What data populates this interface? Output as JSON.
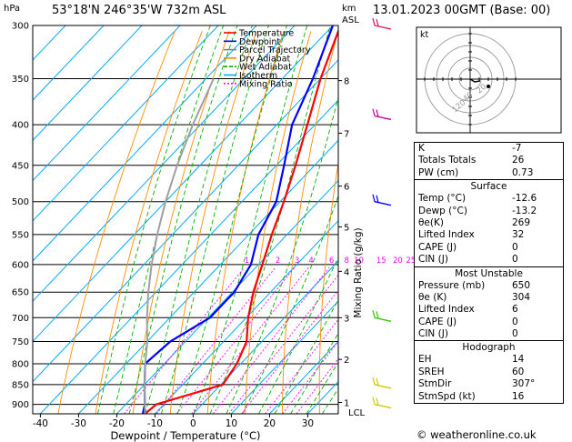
{
  "header": {
    "location": "53°18'N  246°35'W  732m  ASL",
    "datetime": "13.01.2023  00GMT  (Base: 00)",
    "unit_left": "hPa",
    "unit_right_km": "km",
    "unit_right_asl": "ASL"
  },
  "chart_data": {
    "type": "line",
    "title": "",
    "xlabel": "Dewpoint / Temperature (°C)",
    "ylabel_left": "hPa",
    "ylabel_right": "Mixing Ratio (g/kg)",
    "x_ticks": [
      -40,
      -30,
      -20,
      -10,
      0,
      10,
      20,
      30
    ],
    "pressure_levels": [
      300,
      350,
      400,
      450,
      500,
      550,
      600,
      650,
      700,
      750,
      800,
      850,
      900
    ],
    "pressure_range": [
      300,
      925
    ],
    "temp_range_at_base": [
      -42,
      38
    ],
    "km_ticks": [
      {
        "p": 352,
        "label": "8"
      },
      {
        "p": 410,
        "label": "7"
      },
      {
        "p": 478,
        "label": "6"
      },
      {
        "p": 538,
        "label": "5"
      },
      {
        "p": 612,
        "label": "4"
      },
      {
        "p": 700,
        "label": "3"
      },
      {
        "p": 790,
        "label": "2"
      },
      {
        "p": 895,
        "label": "1"
      }
    ],
    "lcl_label": "LCL",
    "lcl_pressure": 920,
    "mixing_ratio_labels": [
      "1",
      "2",
      "3",
      "4",
      "6",
      "8",
      "10",
      "15",
      "20",
      "25"
    ],
    "mixing_ratio_label_pressure": 600,
    "legend": {
      "placement": "top-left inside plot",
      "items": [
        {
          "name": "Temperature",
          "color": "#ff0000"
        },
        {
          "name": "Dewpoint",
          "color": "#0000ff"
        },
        {
          "name": "Parcel Trajectory",
          "color": "#808080"
        },
        {
          "name": "Dry Adiabat",
          "color": "#ff8c00"
        },
        {
          "name": "Wet Adiabat",
          "color": "#00b000"
        },
        {
          "name": "Isotherm",
          "color": "#00aaff"
        },
        {
          "name": "Mixing Ratio",
          "color": "#ff00ff"
        }
      ]
    },
    "series": [
      {
        "name": "Temperature",
        "color": "#ff0000",
        "points": [
          [
            925,
            -12.6
          ],
          [
            900,
            -12
          ],
          [
            850,
            0.5
          ],
          [
            800,
            -1
          ],
          [
            750,
            -4
          ],
          [
            700,
            -9.5
          ],
          [
            650,
            -14.5
          ],
          [
            600,
            -19
          ],
          [
            550,
            -24
          ],
          [
            500,
            -29
          ],
          [
            450,
            -35
          ],
          [
            400,
            -42
          ],
          [
            350,
            -50
          ],
          [
            300,
            -58
          ]
        ]
      },
      {
        "name": "Dewpoint",
        "color": "#0000ff",
        "points": [
          [
            925,
            -13.2
          ],
          [
            900,
            -15
          ],
          [
            850,
            -20
          ],
          [
            800,
            -25
          ],
          [
            750,
            -24
          ],
          [
            700,
            -19.5
          ],
          [
            650,
            -19.5
          ],
          [
            600,
            -22
          ],
          [
            550,
            -27.5
          ],
          [
            500,
            -31
          ],
          [
            450,
            -38
          ],
          [
            400,
            -46
          ],
          [
            350,
            -52
          ],
          [
            300,
            -60
          ]
        ]
      },
      {
        "name": "Parcel Trajectory",
        "color": "#a0a0a0",
        "points": [
          [
            925,
            -12.6
          ],
          [
            900,
            -15
          ],
          [
            850,
            -20
          ],
          [
            800,
            -25
          ],
          [
            750,
            -30
          ],
          [
            700,
            -36
          ],
          [
            650,
            -42
          ],
          [
            600,
            -48
          ],
          [
            550,
            -54
          ],
          [
            500,
            -60
          ],
          [
            450,
            -66
          ],
          [
            400,
            -72
          ],
          [
            350,
            -78
          ]
        ]
      }
    ]
  },
  "hodograph": {
    "label": "kt",
    "ring_labels": [
      "20",
      "40",
      "120"
    ]
  },
  "indices": {
    "rows": [
      {
        "label": "K",
        "value": "-7"
      },
      {
        "label": "Totals Totals",
        "value": "26"
      },
      {
        "label": "PW (cm)",
        "value": "0.73"
      }
    ]
  },
  "surface": {
    "title": "Surface",
    "rows": [
      {
        "label": "Temp (°C)",
        "value": "-12.6"
      },
      {
        "label": "Dewp (°C)",
        "value": "-13.2"
      },
      {
        "label": "θe(K)",
        "value": "269"
      },
      {
        "label": "Lifted Index",
        "value": "32"
      },
      {
        "label": "CAPE (J)",
        "value": "0"
      },
      {
        "label": "CIN (J)",
        "value": "0"
      }
    ]
  },
  "most_unstable": {
    "title": "Most Unstable",
    "rows": [
      {
        "label": "Pressure (mb)",
        "value": "650"
      },
      {
        "label": "θe (K)",
        "value": "304"
      },
      {
        "label": "Lifted Index",
        "value": "6"
      },
      {
        "label": "CAPE (J)",
        "value": "0"
      },
      {
        "label": "CIN (J)",
        "value": "0"
      }
    ]
  },
  "hodograph_params": {
    "title": "Hodograph",
    "rows": [
      {
        "label": "EH",
        "value": "14"
      },
      {
        "label": "SREH",
        "value": "60"
      },
      {
        "label": "StmDir",
        "value": "307°"
      },
      {
        "label": "StmSpd (kt)",
        "value": "16"
      }
    ]
  },
  "footer": {
    "credit": "© weatheronline.co.uk"
  }
}
